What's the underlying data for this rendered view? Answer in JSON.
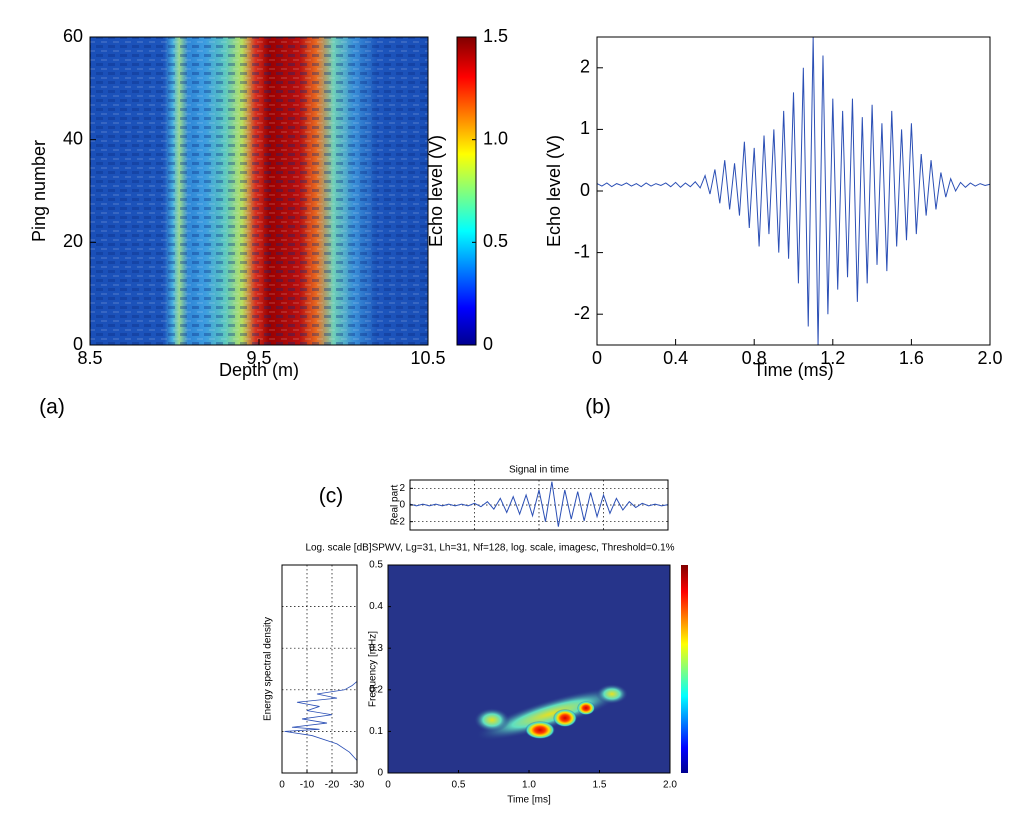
{
  "chart_data": [
    {
      "type": "heatmap",
      "panel_label": "(a)",
      "xlabel": "Depth (m)",
      "ylabel": "Ping number",
      "clabel": "Echo level (V)",
      "xlim": [
        8.5,
        10.5
      ],
      "ylim": [
        0,
        60
      ],
      "xticks": [
        8.5,
        9.5,
        10.5
      ],
      "yticks": [
        0,
        20,
        40,
        60
      ],
      "clim": [
        0,
        1.5
      ],
      "cticks": [
        0,
        0.5,
        {
          "value": 1,
          "label": "1.0"
        },
        1.5
      ],
      "grid": false
    },
    {
      "type": "line",
      "panel_label": "(b)",
      "xlabel": "Time (ms)",
      "ylabel": "Echo level (V)",
      "color": "#2b4fb5",
      "xlim": [
        0,
        2
      ],
      "ylim": [
        -2.5,
        2.5
      ],
      "xticks": [
        0,
        0.4,
        0.8,
        1.2,
        1.6,
        {
          "value": 2,
          "label": "2.0"
        }
      ],
      "yticks": [
        -2,
        -1,
        0,
        1,
        2
      ],
      "grid": false,
      "x": [
        0,
        0.025,
        0.05,
        0.075,
        0.1,
        0.125,
        0.15,
        0.175,
        0.2,
        0.225,
        0.25,
        0.275,
        0.3,
        0.325,
        0.35,
        0.375,
        0.4,
        0.425,
        0.45,
        0.475,
        0.5,
        0.525,
        0.55,
        0.575,
        0.6,
        0.625,
        0.65,
        0.675,
        0.7,
        0.725,
        0.75,
        0.775,
        0.8,
        0.825,
        0.85,
        0.875,
        0.9,
        0.925,
        0.95,
        0.975,
        1,
        1.025,
        1.05,
        1.075,
        1.1,
        1.125,
        1.15,
        1.175,
        1.2,
        1.225,
        1.25,
        1.275,
        1.3,
        1.325,
        1.35,
        1.375,
        1.4,
        1.425,
        1.45,
        1.475,
        1.5,
        1.525,
        1.55,
        1.575,
        1.6,
        1.625,
        1.65,
        1.675,
        1.7,
        1.725,
        1.75,
        1.775,
        1.8,
        1.825,
        1.85,
        1.875,
        1.9,
        1.925,
        1.95,
        1.975,
        2
      ],
      "values": [
        0.12,
        0.08,
        0.13,
        0.07,
        0.12,
        0.09,
        0.13,
        0.08,
        0.12,
        0.07,
        0.13,
        0.08,
        0.12,
        0.09,
        0.13,
        0.07,
        0.14,
        0.06,
        0.13,
        0.07,
        0.15,
        0.05,
        0.25,
        -0.05,
        0.35,
        -0.2,
        0.5,
        -0.3,
        0.45,
        -0.4,
        0.8,
        -0.6,
        0.7,
        -0.9,
        0.9,
        -0.7,
        1.0,
        -1.0,
        1.3,
        -1.1,
        1.6,
        -1.5,
        2.0,
        -2.2,
        2.5,
        -2.5,
        2.2,
        -2.0,
        1.5,
        -1.6,
        1.3,
        -1.4,
        1.5,
        -1.8,
        1.2,
        -1.5,
        1.4,
        -1.2,
        1.1,
        -1.3,
        1.3,
        -0.9,
        1.0,
        -0.8,
        1.1,
        -0.7,
        0.6,
        -0.4,
        0.5,
        -0.3,
        0.3,
        -0.1,
        0.2,
        0.0,
        0.14,
        0.06,
        0.13,
        0.08,
        0.12,
        0.09,
        0.11
      ]
    },
    {
      "type": "line",
      "panel_label": "(c)",
      "title": "Signal in time",
      "ylabel": "Real part",
      "color": "#2b4fb5",
      "xlim": [
        0,
        2
      ],
      "ylim": [
        -3,
        3
      ],
      "yticks": [
        -2,
        0,
        2
      ],
      "xgrid": [
        0.5,
        1,
        1.5
      ],
      "grid": true,
      "x": [
        0,
        0.05,
        0.1,
        0.15,
        0.2,
        0.25,
        0.3,
        0.35,
        0.4,
        0.45,
        0.5,
        0.55,
        0.6,
        0.65,
        0.7,
        0.75,
        0.8,
        0.85,
        0.9,
        0.95,
        1,
        1.05,
        1.1,
        1.15,
        1.2,
        1.25,
        1.3,
        1.35,
        1.4,
        1.45,
        1.5,
        1.55,
        1.6,
        1.65,
        1.7,
        1.75,
        1.8,
        1.85,
        1.9,
        1.95,
        2
      ],
      "values": [
        0.1,
        -0.1,
        0.1,
        -0.1,
        0.1,
        -0.1,
        0.1,
        -0.1,
        0.1,
        -0.1,
        0.2,
        -0.2,
        0.4,
        -0.5,
        0.8,
        -0.9,
        1.0,
        -1.1,
        1.2,
        -1.3,
        1.8,
        -2.0,
        2.8,
        -2.6,
        1.8,
        -1.7,
        1.6,
        -1.9,
        1.5,
        -1.4,
        1.2,
        -1.0,
        0.8,
        -0.6,
        0.4,
        -0.3,
        0.2,
        -0.1,
        0.1,
        -0.1,
        0.05
      ]
    },
    {
      "type": "line",
      "horizontal": true,
      "ylabel": "Energy spectral density",
      "color": "#2b4fb5",
      "xlim": [
        0,
        -30
      ],
      "ylim": [
        0,
        0.5
      ],
      "xticks": [
        0,
        -10,
        -20,
        -30
      ],
      "ygrid": [
        0.1,
        0.2,
        0.3,
        0.4
      ],
      "grid": true,
      "x": [
        0.03,
        0.05,
        0.07,
        0.09,
        0.1,
        0.105,
        0.11,
        0.12,
        0.13,
        0.14,
        0.15,
        0.16,
        0.17,
        0.18,
        0.19,
        0.2,
        0.21,
        0.22
      ],
      "values": [
        -30,
        -27,
        -22,
        -12,
        -1,
        -15,
        -4,
        -18,
        -8,
        -20,
        -10,
        -15,
        -6,
        -22,
        -14,
        -25,
        -28,
        -30
      ]
    },
    {
      "type": "heatmap",
      "title": "Log. scale [dB]SPWV, Lg=31, Lh=31, Nf=128, log. scale, imagesc, Threshold=0.1%",
      "xlabel": "Time [ms]",
      "ylabel": "Frequency [mHz]",
      "xlim": [
        0,
        2
      ],
      "ylim": [
        0,
        0.5
      ],
      "xticks": [
        0,
        0.5,
        {
          "value": 1,
          "label": "1.0"
        },
        1.5,
        {
          "value": 2,
          "label": "2.0"
        }
      ],
      "yticks": [
        0,
        0.1,
        0.2,
        0.3,
        0.4,
        0.5
      ],
      "grid": false
    }
  ]
}
